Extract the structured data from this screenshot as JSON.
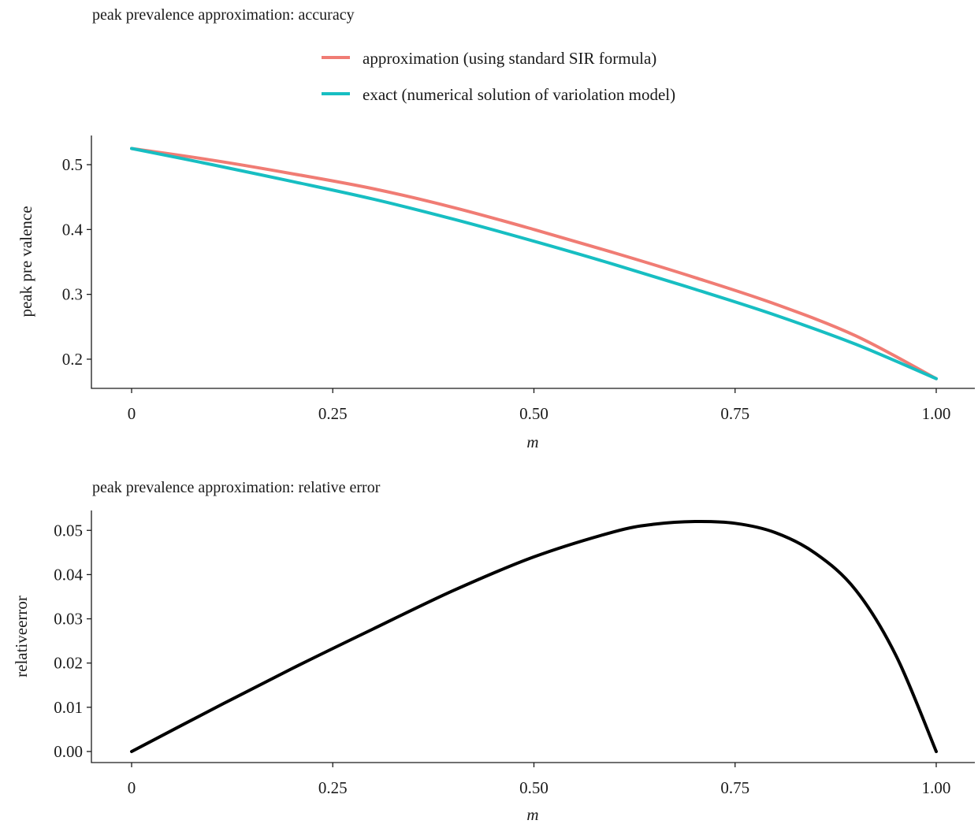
{
  "chart_data": [
    {
      "type": "line",
      "title": "peak prevalence approximation: accuracy",
      "xlabel": "m",
      "ylabel": "peak pre valence",
      "xlim": [
        0,
        1
      ],
      "ylim": [
        0.155,
        0.545
      ],
      "xticks": [
        0,
        0.25,
        0.5,
        0.75,
        1.0
      ],
      "xtick_labels": [
        "0",
        "0.25",
        "0.50",
        "0.75",
        "1.00"
      ],
      "yticks": [
        0.2,
        0.3,
        0.4,
        0.5
      ],
      "ytick_labels": [
        "0.2",
        "0.3",
        "0.4",
        "0.5"
      ],
      "grid": false,
      "legend": "top",
      "x": [
        0,
        0.1,
        0.2,
        0.3,
        0.4,
        0.5,
        0.6,
        0.7,
        0.8,
        0.9,
        1.0
      ],
      "series": [
        {
          "name": "approximation (using standard SIR formula)",
          "color": "#f07c74",
          "values": [
            0.525,
            0.507,
            0.486,
            0.463,
            0.434,
            0.4,
            0.364,
            0.326,
            0.285,
            0.236,
            0.17
          ]
        },
        {
          "name": "exact (numerical solution of variolation model)",
          "color": "#17bec2",
          "values": [
            0.525,
            0.5,
            0.474,
            0.447,
            0.416,
            0.382,
            0.346,
            0.308,
            0.268,
            0.223,
            0.17
          ]
        }
      ]
    },
    {
      "type": "line",
      "title": "peak prevalence approximation: relative error",
      "xlabel": "m",
      "ylabel": "relativeerror",
      "xlim": [
        0,
        1
      ],
      "ylim": [
        -0.0025,
        0.0545
      ],
      "xticks": [
        0,
        0.25,
        0.5,
        0.75,
        1.0
      ],
      "xtick_labels": [
        "0",
        "0.25",
        "0.50",
        "0.75",
        "1.00"
      ],
      "yticks": [
        0,
        0.01,
        0.02,
        0.03,
        0.04,
        0.05
      ],
      "ytick_labels": [
        "0.00",
        "0.01",
        "0.02",
        "0.03",
        "0.04",
        "0.05"
      ],
      "grid": false,
      "x": [
        0,
        0.1,
        0.2,
        0.3,
        0.4,
        0.5,
        0.6,
        0.65,
        0.7,
        0.75,
        0.8,
        0.85,
        0.9,
        0.95,
        1.0
      ],
      "series": [
        {
          "color": "#000000",
          "values": [
            0.0,
            0.0095,
            0.0188,
            0.0277,
            0.0364,
            0.044,
            0.0497,
            0.0514,
            0.052,
            0.0516,
            0.0495,
            0.0448,
            0.0365,
            0.0217,
            0.0
          ]
        }
      ]
    }
  ]
}
